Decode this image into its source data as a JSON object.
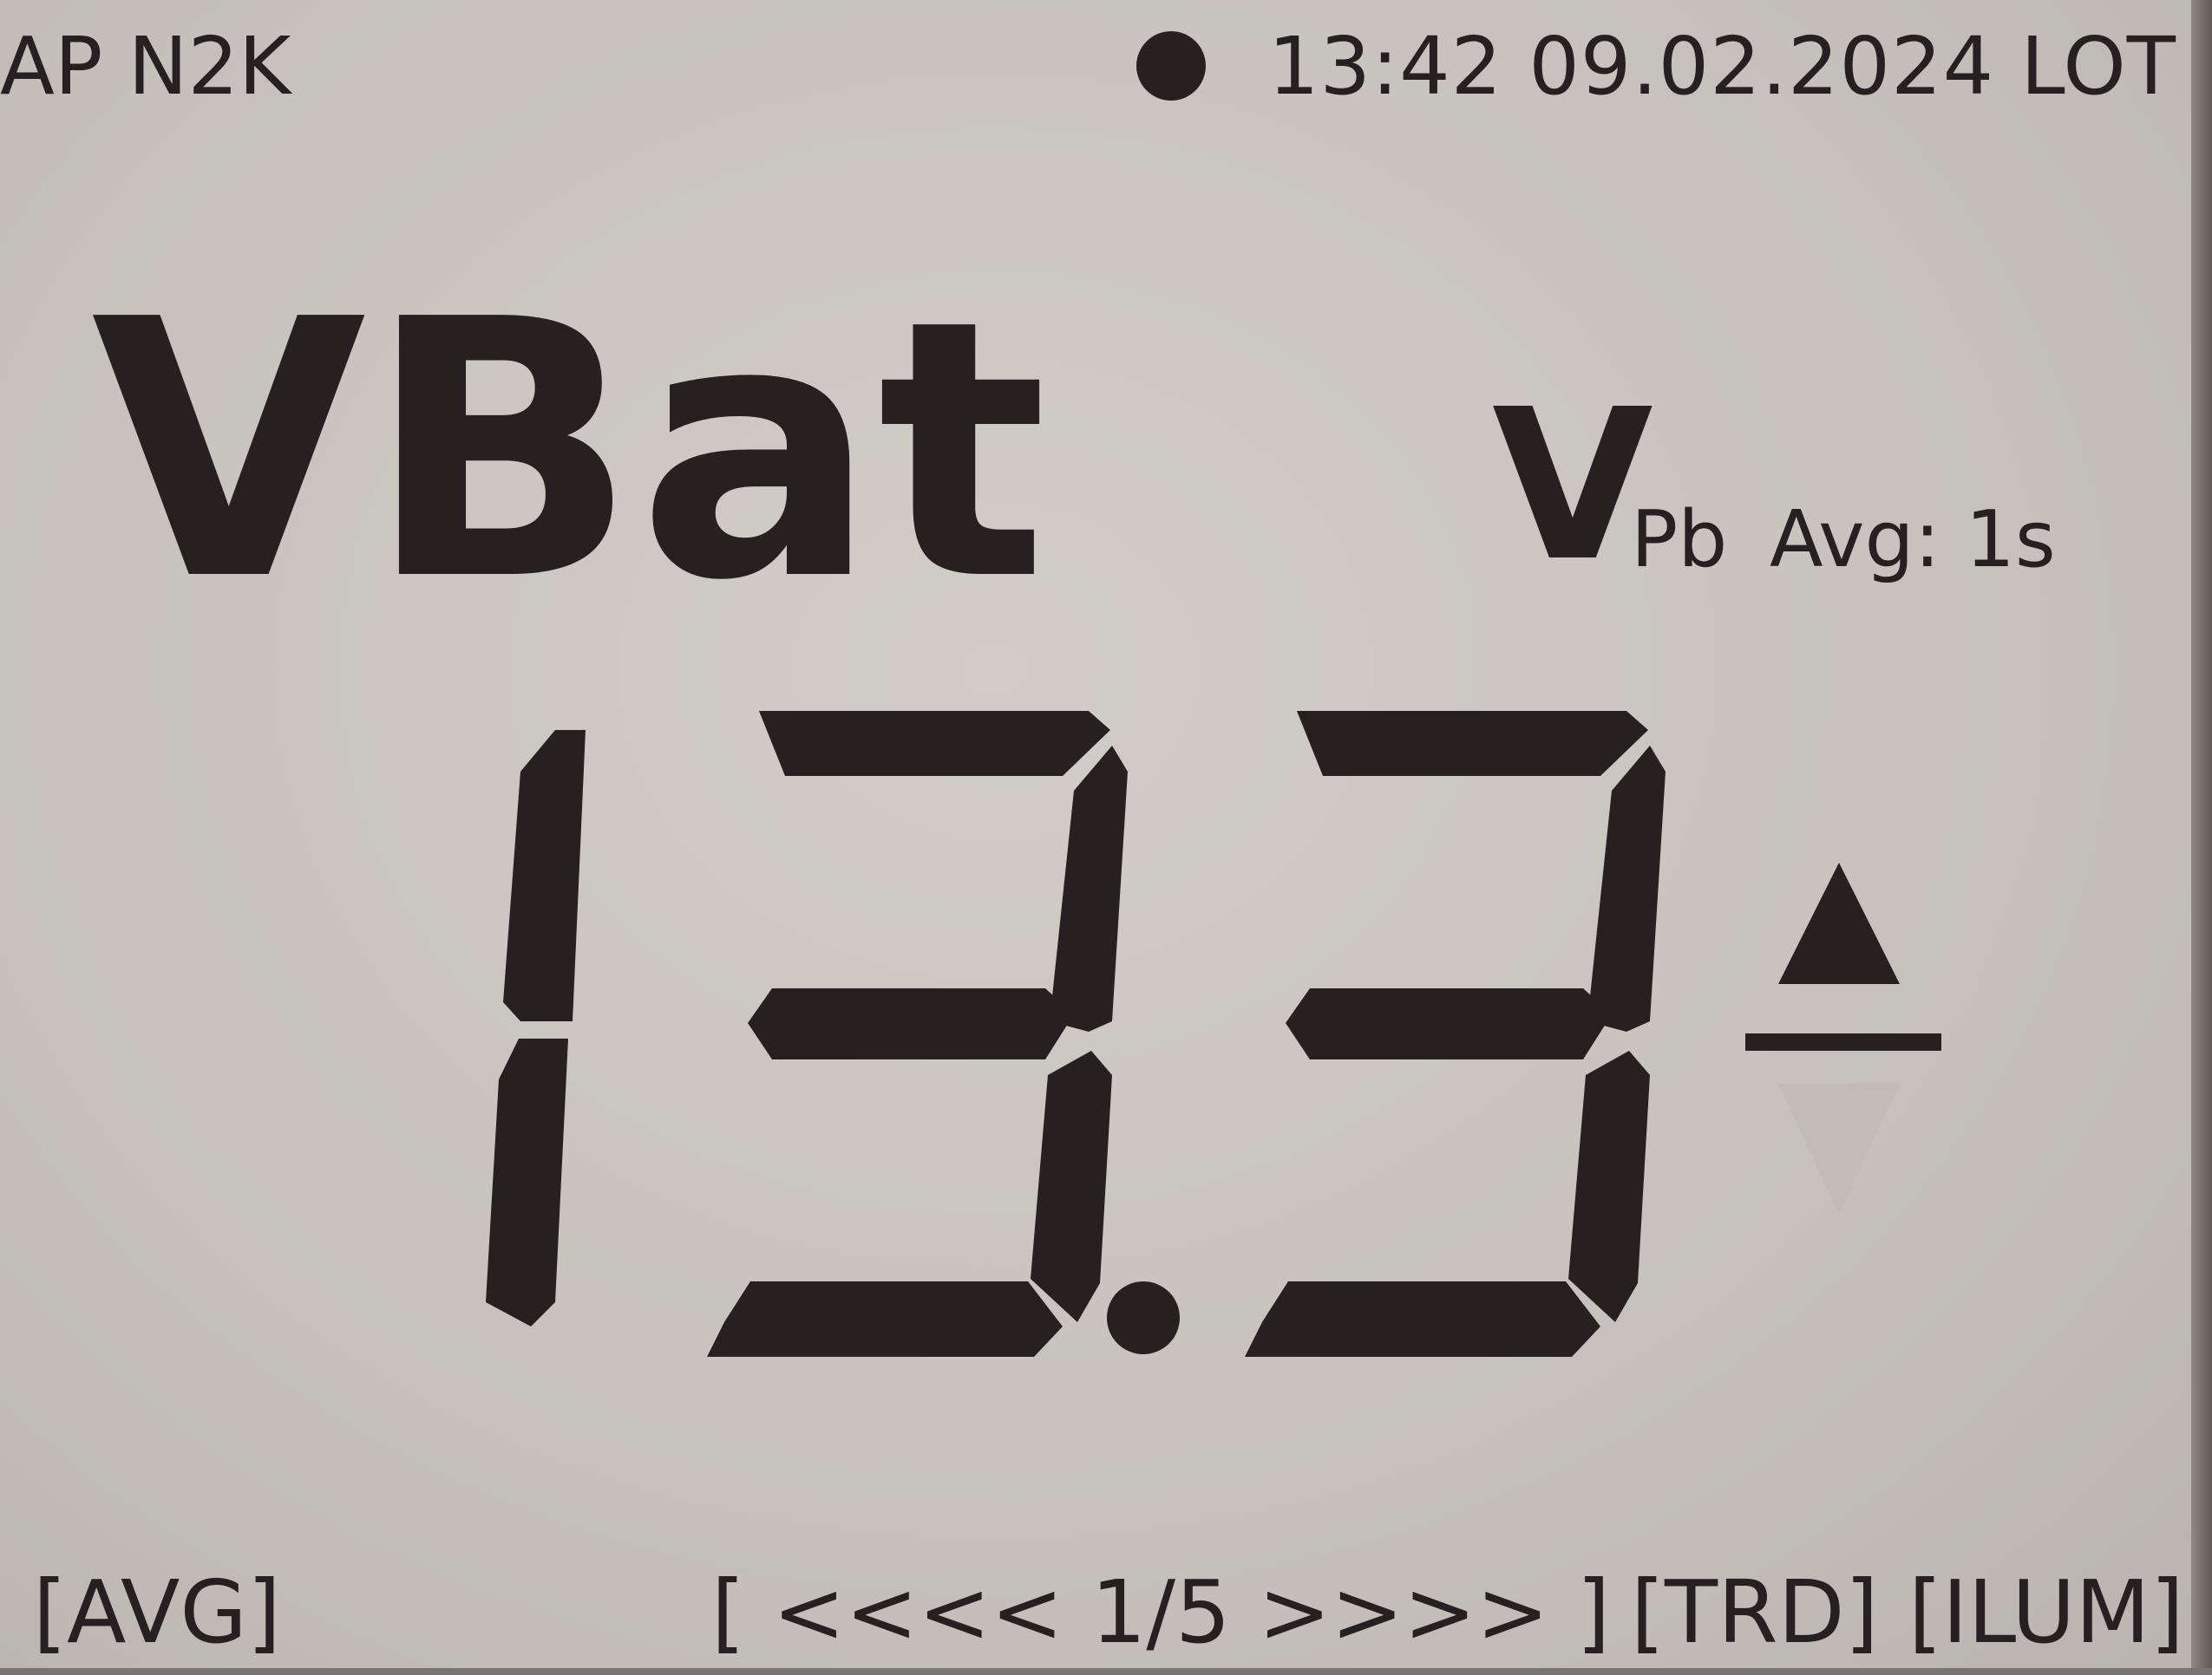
{
  "header": {
    "device_label": "AP N2K",
    "status_indicator": "filled-dot-icon",
    "datetime": "13:42 09.02.2024 LOT"
  },
  "reading": {
    "name": "VBat",
    "unit": "V",
    "unit_subscript": "Pb",
    "avg_label": "Avg: 1s",
    "value": "13.3",
    "trend_icon": "triangle-up-icon"
  },
  "footer": {
    "avg_button": "[AVG]",
    "pager": "[ <<<< 1/5 >>>> ]",
    "trend_button": "[TRD]",
    "illumination_button": "[ILUM]"
  },
  "colors": {
    "lcd_background": "#c9c4bf",
    "lcd_ink": "#262120"
  }
}
